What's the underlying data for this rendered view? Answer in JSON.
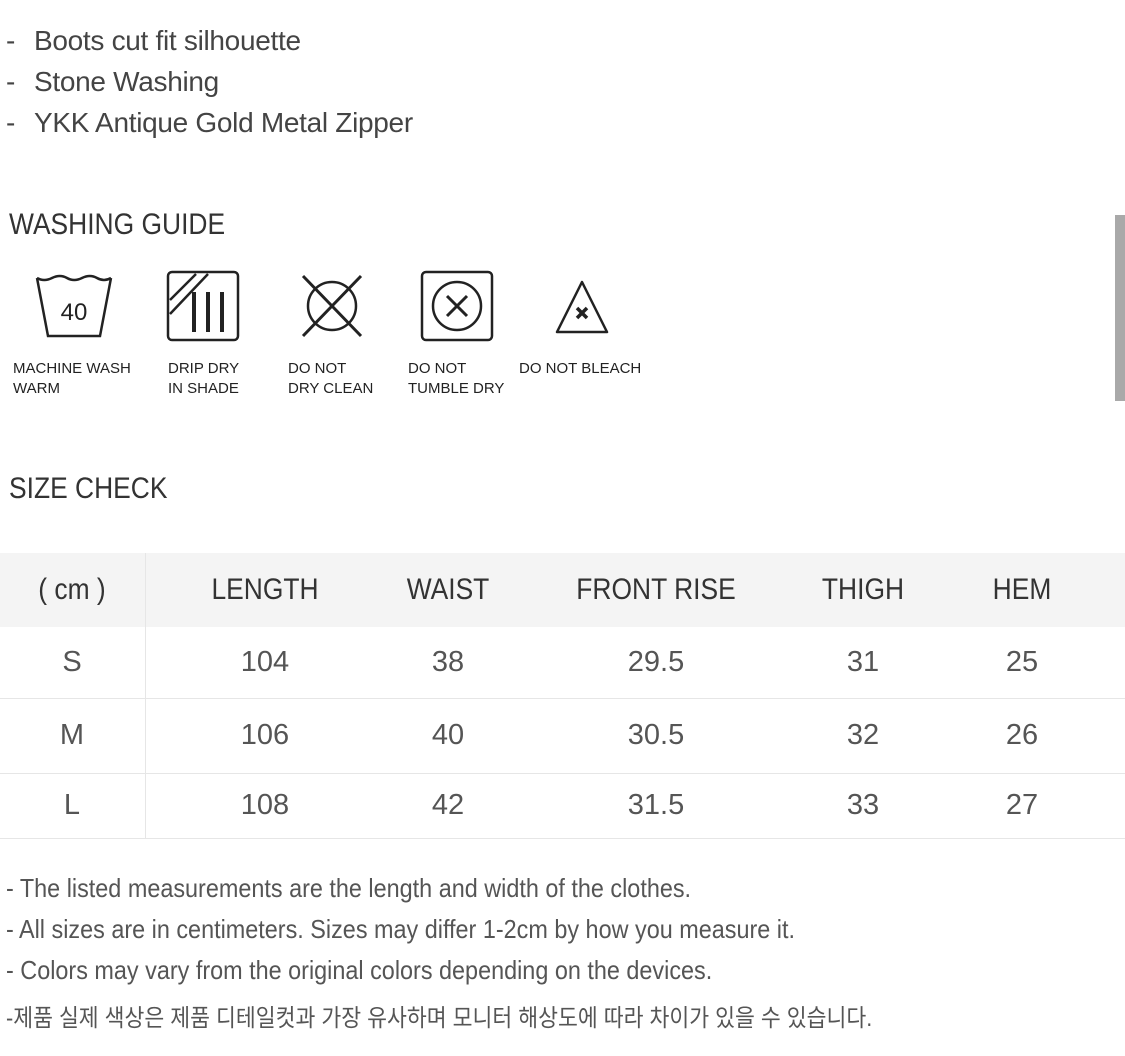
{
  "features": [
    "Boots cut fit silhouette",
    "Stone Washing",
    "YKK Antique Gold Metal Zipper"
  ],
  "washing_guide": {
    "title": "WASHING GUIDE",
    "items": [
      {
        "icon": "machine-wash-40-icon",
        "temp": "40",
        "label": "MACHINE WASH\nWARM"
      },
      {
        "icon": "drip-dry-shade-icon",
        "label": "DRIP DRY\nIN SHADE"
      },
      {
        "icon": "no-dry-clean-icon",
        "label": "DO NOT\nDRY CLEAN"
      },
      {
        "icon": "no-tumble-dry-icon",
        "label": "DO NOT\nTUMBLE DRY"
      },
      {
        "icon": "no-bleach-icon",
        "label": "DO NOT BLEACH"
      }
    ]
  },
  "size_check": {
    "title": "SIZE CHECK",
    "headers": [
      "( cm )",
      "LENGTH",
      "WAIST",
      "FRONT RISE",
      "THIGH",
      "HEM"
    ],
    "rows": [
      [
        "S",
        "104",
        "38",
        "29.5",
        "31",
        "25"
      ],
      [
        "M",
        "106",
        "40",
        "30.5",
        "32",
        "26"
      ],
      [
        "L",
        "108",
        "42",
        "31.5",
        "33",
        "27"
      ]
    ]
  },
  "notes": [
    "- The listed measurements are the length and width of the clothes.",
    "- All sizes are in centimeters. Sizes may differ 1-2cm by how you measure it.",
    "- Colors may vary from the original colors depending on the devices.",
    "-제품 실제 색상은 제품 디테일컷과 가장 유사하며 모니터 해상도에 따라 차이가 있을 수 있습니다."
  ]
}
